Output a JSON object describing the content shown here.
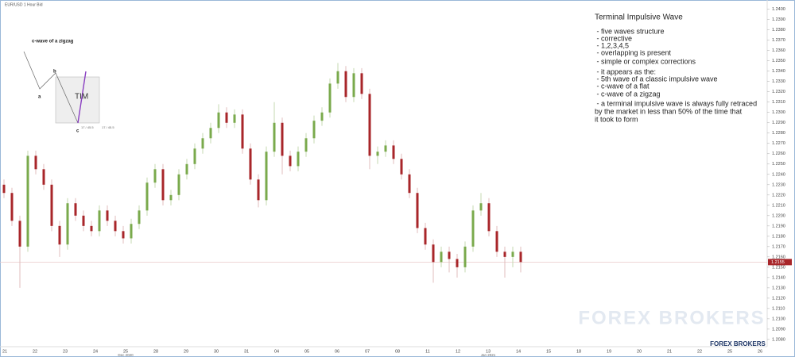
{
  "chart_data": {
    "type": "candlestick",
    "header": "EUR/USD  1 Hour Bid",
    "categories": [
      "21",
      "22",
      "23",
      "24",
      "25",
      "28",
      "29",
      "30",
      "31",
      "04",
      "05",
      "06",
      "07",
      "08",
      "11",
      "12",
      "13",
      "14",
      "15",
      "18",
      "19",
      "20",
      "21",
      "22",
      "25",
      "26"
    ],
    "month_labels": [
      "Dec 2020",
      "Jan 2021"
    ],
    "open": [
      1.223,
      1.2222,
      1.2195,
      1.217,
      1.2258,
      1.2245,
      1.223,
      1.219,
      1.2172,
      1.2212,
      1.22,
      1.219,
      1.2185,
      1.2205,
      1.2195,
      1.2185,
      1.2178,
      1.2192,
      1.2205,
      1.2232,
      1.2245,
      1.2215,
      1.222,
      1.224,
      1.225,
      1.2265,
      1.2275,
      1.2285,
      1.23,
      1.229,
      1.2298,
      1.2265,
      1.2235,
      1.2215,
      1.2262,
      1.229,
      1.2258,
      1.2248,
      1.2262,
      1.2275,
      1.2292,
      1.23,
      1.2328,
      1.234,
      1.2315,
      1.2338,
      1.2318,
      1.2258,
      1.2262,
      1.2268,
      1.2255,
      1.224,
      1.2222,
      1.2188,
      1.2172,
      1.2155,
      1.2165,
      1.2158,
      1.215,
      1.217,
      1.2205,
      1.2212,
      1.2185,
      1.2165,
      1.216,
      1.2165
    ],
    "high": [
      1.2235,
      1.2227,
      1.22,
      1.2263,
      1.2263,
      1.225,
      1.2235,
      1.2195,
      1.2217,
      1.2217,
      1.2205,
      1.2195,
      1.221,
      1.221,
      1.22,
      1.219,
      1.2197,
      1.221,
      1.2237,
      1.225,
      1.225,
      1.2225,
      1.2245,
      1.2255,
      1.227,
      1.228,
      1.229,
      1.2308,
      1.2305,
      1.2303,
      1.2303,
      1.227,
      1.224,
      1.2267,
      1.231,
      1.2295,
      1.2263,
      1.2267,
      1.228,
      1.2297,
      1.2305,
      1.2333,
      1.2348,
      1.2345,
      1.2343,
      1.2343,
      1.2323,
      1.2267,
      1.2273,
      1.2273,
      1.226,
      1.2245,
      1.2227,
      1.2193,
      1.2177,
      1.217,
      1.217,
      1.2163,
      1.2175,
      1.221,
      1.2222,
      1.2217,
      1.219,
      1.217,
      1.217,
      1.217
    ],
    "low": [
      1.2217,
      1.219,
      1.213,
      1.2165,
      1.224,
      1.2225,
      1.2185,
      1.216,
      1.2167,
      1.2195,
      1.2185,
      1.218,
      1.218,
      1.219,
      1.218,
      1.2173,
      1.2173,
      1.2187,
      1.22,
      1.2227,
      1.221,
      1.221,
      1.2215,
      1.2235,
      1.2245,
      1.226,
      1.227,
      1.228,
      1.2285,
      1.2285,
      1.226,
      1.223,
      1.2208,
      1.221,
      1.2257,
      1.224,
      1.2243,
      1.2243,
      1.2257,
      1.227,
      1.2287,
      1.2295,
      1.2323,
      1.231,
      1.231,
      1.2313,
      1.2245,
      1.225,
      1.2257,
      1.225,
      1.2235,
      1.2217,
      1.2183,
      1.2167,
      1.2135,
      1.215,
      1.2145,
      1.214,
      1.2145,
      1.2165,
      1.22,
      1.218,
      1.216,
      1.214,
      1.215,
      1.2145
    ],
    "close": [
      1.2222,
      1.2195,
      1.217,
      1.2258,
      1.2245,
      1.223,
      1.219,
      1.2172,
      1.2212,
      1.22,
      1.219,
      1.2185,
      1.2205,
      1.2195,
      1.2185,
      1.2178,
      1.2192,
      1.2205,
      1.2232,
      1.2245,
      1.2215,
      1.222,
      1.224,
      1.225,
      1.2265,
      1.2275,
      1.2285,
      1.23,
      1.229,
      1.2298,
      1.2265,
      1.2235,
      1.2215,
      1.2262,
      1.229,
      1.2258,
      1.2248,
      1.2262,
      1.2275,
      1.2292,
      1.23,
      1.2328,
      1.234,
      1.2315,
      1.2338,
      1.2318,
      1.2258,
      1.2262,
      1.2268,
      1.2255,
      1.224,
      1.2222,
      1.2188,
      1.2172,
      1.2155,
      1.2165,
      1.2158,
      1.215,
      1.217,
      1.2205,
      1.2212,
      1.2185,
      1.2165,
      1.216,
      1.2165,
      1.2155
    ],
    "up_color": "#7aaa4c",
    "down_color": "#a8262a",
    "last_price": {
      "value": 1.2155,
      "label": "1.2155"
    },
    "ylim": [
      1.2073,
      1.2409
    ],
    "yticks": [
      {
        "value": 1.24,
        "label": "1.2400"
      },
      {
        "value": 1.239,
        "label": "1.2390"
      },
      {
        "value": 1.238,
        "label": "1.2380"
      },
      {
        "value": 1.237,
        "label": "1.2370"
      },
      {
        "value": 1.236,
        "label": "1.2360"
      },
      {
        "value": 1.235,
        "label": "1.2350"
      },
      {
        "value": 1.234,
        "label": "1.2340"
      },
      {
        "value": 1.233,
        "label": "1.2330"
      },
      {
        "value": 1.232,
        "label": "1.2320"
      },
      {
        "value": 1.231,
        "label": "1.2310"
      },
      {
        "value": 1.23,
        "label": "1.2300"
      },
      {
        "value": 1.229,
        "label": "1.2290"
      },
      {
        "value": 1.228,
        "label": "1.2280"
      },
      {
        "value": 1.227,
        "label": "1.2270"
      },
      {
        "value": 1.226,
        "label": "1.2260"
      },
      {
        "value": 1.225,
        "label": "1.2250"
      },
      {
        "value": 1.224,
        "label": "1.2240"
      },
      {
        "value": 1.223,
        "label": "1.2230"
      },
      {
        "value": 1.222,
        "label": "1.2220"
      },
      {
        "value": 1.221,
        "label": "1.2210"
      },
      {
        "value": 1.22,
        "label": "1.2200"
      },
      {
        "value": 1.219,
        "label": "1.2190"
      },
      {
        "value": 1.218,
        "label": "1.2180"
      },
      {
        "value": 1.217,
        "label": "1.2170"
      },
      {
        "value": 1.216,
        "label": "1.2160"
      },
      {
        "value": 1.215,
        "label": "1.2150"
      },
      {
        "value": 1.214,
        "label": "1.2140"
      },
      {
        "value": 1.213,
        "label": "1.2130"
      },
      {
        "value": 1.212,
        "label": "1.2120"
      },
      {
        "value": 1.211,
        "label": "1.2110"
      },
      {
        "value": 1.21,
        "label": "1.2100"
      },
      {
        "value": 1.209,
        "label": "1.2090"
      },
      {
        "value": 1.208,
        "label": "1.2080"
      }
    ],
    "annotation": {
      "title": "Terminal Impulsive Wave",
      "lines": [
        " - five waves structure",
        " - corrective",
        " - 1,2,3,4,5",
        " - overlapping is present",
        " - simple or complex corrections",
        " - it appears as the:",
        " - 5th wave of a classic impulsive wave",
        " - c-wave of a flat",
        " - c-wave of a zigzag",
        " - a terminal impulsive wave is always fully retraced",
        "by the market in less than 50% of the time that",
        "it took to form"
      ]
    },
    "inset": {
      "title": "c-wave of a zigzag",
      "a": "a",
      "b": "b",
      "c": "c",
      "box": "TIM",
      "measure": "17 / 45.5"
    },
    "watermark": "FOREX BROKERS"
  }
}
